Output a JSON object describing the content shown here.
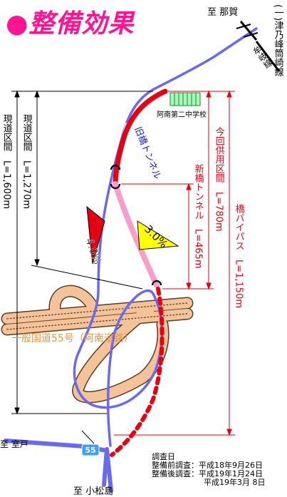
{
  "title": "●整備効果",
  "places": {
    "nahe": "至 那賀",
    "muroto": "至 室戸",
    "komatsushima": "至 小松島",
    "school": "阿南第二中学校"
  },
  "rail": {
    "name": "(一)津乃峰筒崎線",
    "line": "牟岐線"
  },
  "road": {
    "national": "一般国道55号（阿南道路）",
    "route_shield": "55"
  },
  "tunnels": {
    "old": "旧橋トンネル",
    "new": "新橋トンネル　L=465m"
  },
  "sections": {
    "current_full": "現道区間　L=1,600m",
    "current_short": "現道区間　L=1,270m",
    "in_service": "今回供用区間　L=780m",
    "bypass": "橋バイパス　L=1,150m"
  },
  "gradients": {
    "old_road": "4.0%",
    "new_road": "3.0%"
  },
  "survey": {
    "heading": "調査日",
    "before": "整備前調査：平成18年9月26日",
    "after1": "整備後調査：平成19年1月24日",
    "after2": "平成19年3月 8日"
  },
  "colors": {
    "title": "#ff1493",
    "current_road": "#6a6aee",
    "bypass_open": "#e60012",
    "tunnel_new": "#f4a0c8",
    "tunnel_old": "#a8f0f0",
    "national_road": "#f5c39a",
    "dimension_red": "#e60012",
    "grade_old": "#e60012",
    "grade_new": "#ffff00"
  }
}
